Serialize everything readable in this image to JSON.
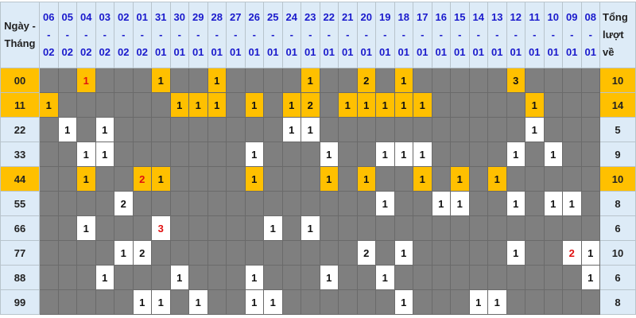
{
  "header": {
    "label": [
      "Ngày -",
      "Tháng"
    ],
    "total": [
      "Tổng",
      "lượt",
      "về"
    ],
    "separator": "-",
    "dates": [
      [
        "06",
        "02"
      ],
      [
        "05",
        "02"
      ],
      [
        "04",
        "02"
      ],
      [
        "03",
        "02"
      ],
      [
        "02",
        "02"
      ],
      [
        "01",
        "02"
      ],
      [
        "31",
        "01"
      ],
      [
        "30",
        "01"
      ],
      [
        "29",
        "01"
      ],
      [
        "28",
        "01"
      ],
      [
        "27",
        "01"
      ],
      [
        "26",
        "01"
      ],
      [
        "25",
        "01"
      ],
      [
        "24",
        "01"
      ],
      [
        "23",
        "01"
      ],
      [
        "22",
        "01"
      ],
      [
        "21",
        "01"
      ],
      [
        "20",
        "01"
      ],
      [
        "19",
        "01"
      ],
      [
        "18",
        "01"
      ],
      [
        "17",
        "01"
      ],
      [
        "16",
        "01"
      ],
      [
        "15",
        "01"
      ],
      [
        "14",
        "01"
      ],
      [
        "13",
        "01"
      ],
      [
        "12",
        "01"
      ],
      [
        "11",
        "01"
      ],
      [
        "10",
        "01"
      ],
      [
        "09",
        "01"
      ],
      [
        "08",
        "01"
      ]
    ]
  },
  "colors": {
    "empty": "#7f7f7f",
    "hit": "#ffffff",
    "highlight": "#ffc000",
    "label_bg": "#ddebf7",
    "date_text": "#1a1acc",
    "red_value": "#e01010"
  },
  "rows": [
    {
      "label": "00",
      "highlight": true,
      "total": "10",
      "red": [
        2
      ],
      "cells": [
        "",
        "",
        1,
        "",
        "",
        "",
        1,
        "",
        "",
        1,
        "",
        "",
        "",
        "",
        1,
        "",
        "",
        2,
        "",
        1,
        "",
        "",
        "",
        "",
        "",
        3,
        "",
        "",
        "",
        ""
      ]
    },
    {
      "label": "11",
      "highlight": true,
      "total": "14",
      "red": [],
      "cells": [
        1,
        "",
        "",
        "",
        "",
        "",
        "",
        1,
        1,
        1,
        "",
        1,
        "",
        1,
        2,
        "",
        1,
        1,
        1,
        1,
        1,
        "",
        "",
        "",
        "",
        "",
        1,
        "",
        "",
        ""
      ]
    },
    {
      "label": "22",
      "highlight": false,
      "total": "5",
      "red": [],
      "cells": [
        "",
        1,
        "",
        1,
        "",
        "",
        "",
        "",
        "",
        "",
        "",
        "",
        "",
        1,
        1,
        "",
        "",
        "",
        "",
        "",
        "",
        "",
        "",
        "",
        "",
        "",
        1,
        "",
        "",
        ""
      ]
    },
    {
      "label": "33",
      "highlight": false,
      "total": "9",
      "red": [],
      "cells": [
        "",
        "",
        1,
        1,
        "",
        "",
        "",
        "",
        "",
        "",
        "",
        1,
        "",
        "",
        "",
        1,
        "",
        "",
        1,
        1,
        1,
        "",
        "",
        "",
        "",
        1,
        "",
        1,
        "",
        ""
      ]
    },
    {
      "label": "44",
      "highlight": true,
      "total": "10",
      "red": [
        5
      ],
      "cells": [
        "",
        "",
        1,
        "",
        "",
        2,
        1,
        "",
        "",
        "",
        "",
        1,
        "",
        "",
        "",
        1,
        "",
        1,
        "",
        "",
        1,
        "",
        1,
        "",
        1,
        "",
        "",
        "",
        "",
        ""
      ]
    },
    {
      "label": "55",
      "highlight": false,
      "total": "8",
      "red": [],
      "cells": [
        "",
        "",
        "",
        "",
        2,
        "",
        "",
        "",
        "",
        "",
        "",
        "",
        "",
        "",
        "",
        "",
        "",
        "",
        1,
        "",
        "",
        1,
        1,
        "",
        "",
        1,
        "",
        1,
        1,
        ""
      ]
    },
    {
      "label": "66",
      "highlight": false,
      "total": "6",
      "red": [
        6
      ],
      "cells": [
        "",
        "",
        1,
        "",
        "",
        "",
        3,
        "",
        "",
        "",
        "",
        "",
        1,
        "",
        1,
        "",
        "",
        "",
        "",
        "",
        "",
        "",
        "",
        "",
        "",
        "",
        "",
        "",
        "",
        ""
      ]
    },
    {
      "label": "77",
      "highlight": false,
      "total": "10",
      "red": [
        28
      ],
      "cells": [
        "",
        "",
        "",
        "",
        1,
        2,
        "",
        "",
        "",
        "",
        "",
        "",
        "",
        "",
        "",
        "",
        "",
        2,
        "",
        1,
        "",
        "",
        "",
        "",
        "",
        1,
        "",
        "",
        2,
        1
      ]
    },
    {
      "label": "88",
      "highlight": false,
      "total": "6",
      "red": [],
      "cells": [
        "",
        "",
        "",
        1,
        "",
        "",
        "",
        1,
        "",
        "",
        "",
        1,
        "",
        "",
        "",
        1,
        "",
        "",
        1,
        "",
        "",
        "",
        "",
        "",
        "",
        "",
        "",
        "",
        "",
        1
      ]
    },
    {
      "label": "99",
      "highlight": false,
      "total": "8",
      "red": [],
      "cells": [
        "",
        "",
        "",
        "",
        "",
        1,
        1,
        "",
        1,
        "",
        "",
        1,
        1,
        "",
        "",
        "",
        "",
        "",
        "",
        1,
        "",
        "",
        "",
        1,
        1,
        "",
        "",
        "",
        "",
        ""
      ]
    }
  ]
}
